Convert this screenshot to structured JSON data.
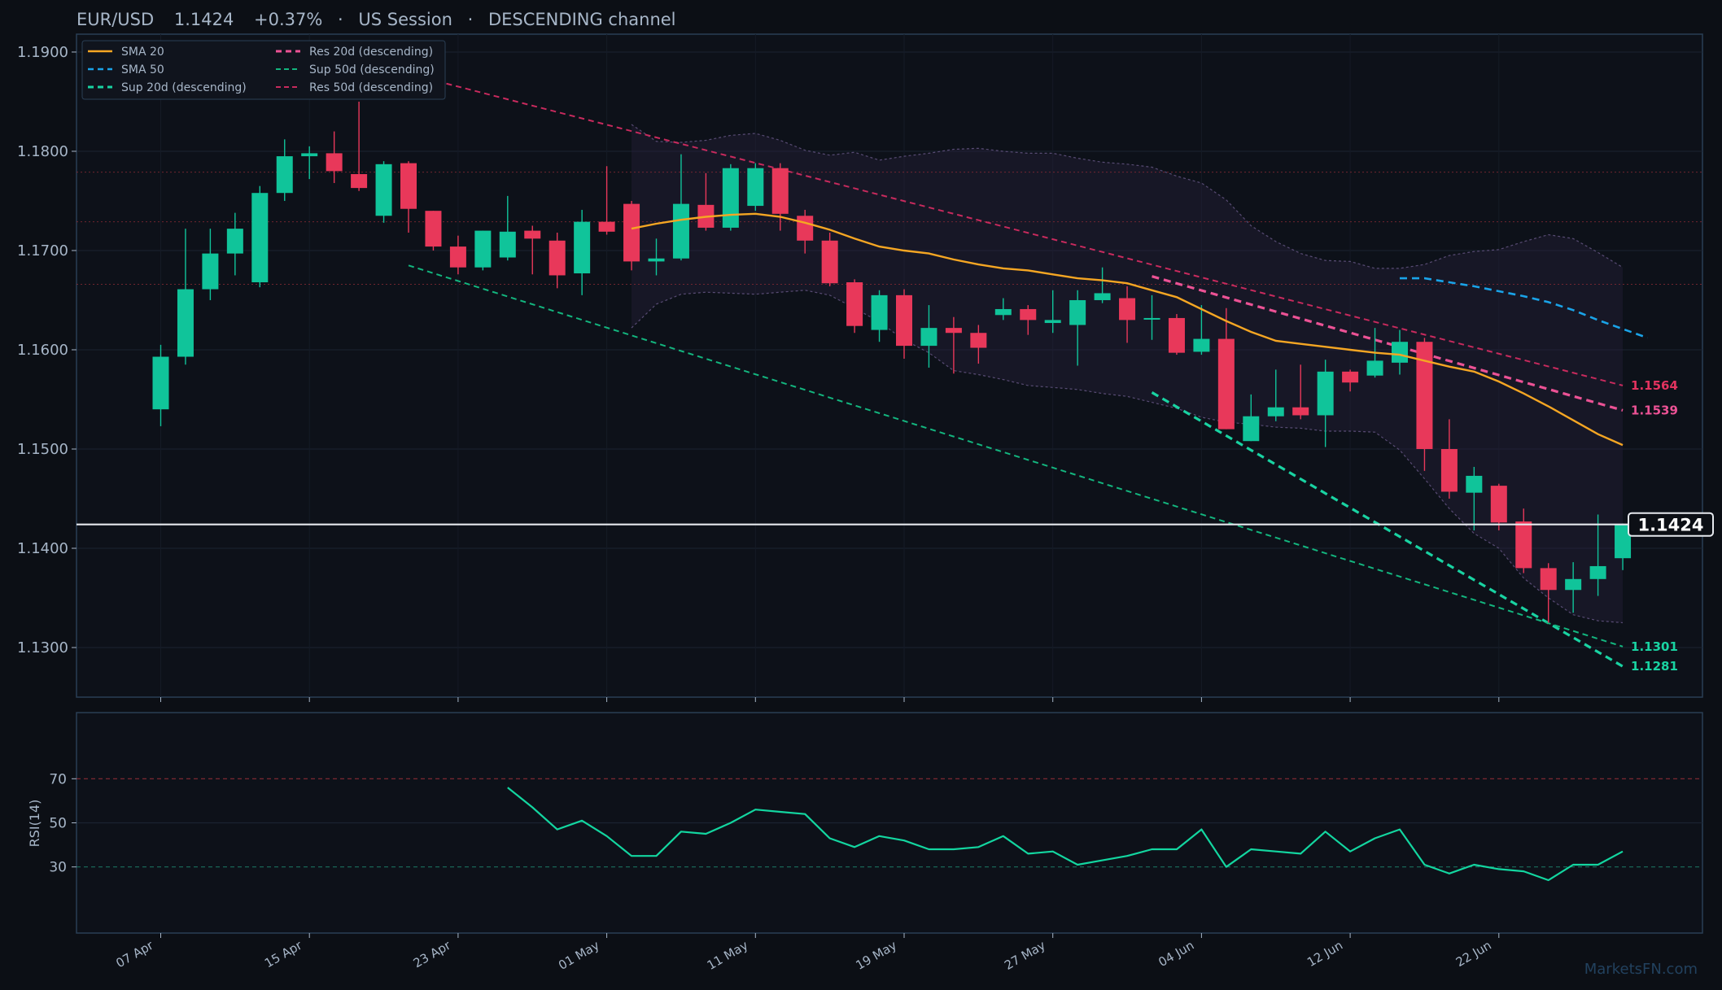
{
  "header": {
    "pair": "EUR/USD",
    "price": "1.1424",
    "change": "+0.37%",
    "session": "US Session",
    "channel": "DESCENDING channel",
    "sep": "·"
  },
  "watermark": "MarketsFN.com",
  "colors": {
    "bg": "#0c0f15",
    "panel": "#0d1119",
    "border": "#2a3f55",
    "up": "#10c49a",
    "down": "#e8385a",
    "sma20": "#f5a623",
    "sma50": "#1aa3e8",
    "sup20": "#19d3a2",
    "sup50": "#13b57e",
    "res20": "#ec5295",
    "res50": "#c72a5d",
    "band": "#6a5a8a",
    "rsi": "#13d6a0",
    "text": "#a7b6c8"
  },
  "chart_data": [
    {
      "type": "candlestick",
      "ylim": [
        1.125,
        1.1918
      ],
      "y_ticks": [
        "1.1300",
        "1.1400",
        "1.1500",
        "1.1600",
        "1.1700",
        "1.1800",
        "1.1900"
      ],
      "y_tick_values": [
        1.13,
        1.14,
        1.15,
        1.16,
        1.17,
        1.18,
        1.19
      ],
      "x_tick_labels": [
        "07 Apr",
        "15 Apr",
        "23 Apr",
        "01 May",
        "11 May",
        "19 May",
        "27 May",
        "04 Jun",
        "12 Jun",
        "22 Jun"
      ],
      "x_tick_index": [
        0,
        6,
        12,
        18,
        24,
        30,
        36,
        42,
        48,
        54
      ],
      "dates": [
        "07 Apr",
        "08 Apr",
        "09 Apr",
        "10 Apr",
        "11 Apr",
        "14 Apr",
        "15 Apr",
        "16 Apr",
        "17 Apr",
        "18 Apr",
        "21 Apr",
        "22 Apr",
        "23 Apr",
        "24 Apr",
        "25 Apr",
        "28 Apr",
        "29 Apr",
        "30 Apr",
        "01 May",
        "02 May",
        "05 May",
        "06 May",
        "07 May",
        "08 May",
        "11 May",
        "12 May",
        "13 May",
        "14 May",
        "15 May",
        "18 May",
        "19 May",
        "20 May",
        "21 May",
        "22 May",
        "25 May",
        "26 May",
        "27 May",
        "28 May",
        "29 May",
        "01 Jun",
        "02 Jun",
        "03 Jun",
        "04 Jun",
        "05 Jun",
        "08 Jun",
        "09 Jun",
        "10 Jun",
        "11 Jun",
        "12 Jun",
        "15 Jun",
        "16 Jun",
        "17 Jun",
        "18 Jun",
        "19 Jun",
        "22 Jun",
        "23 Jun",
        "24 Jun",
        "25 Jun",
        "26 Jun",
        "29 Jun",
        "30 Jun",
        "01 Jul"
      ],
      "ohlc": [
        [
          1.154,
          1.1605,
          1.1523,
          1.1593
        ],
        [
          1.1593,
          1.1722,
          1.1585,
          1.1661
        ],
        [
          1.1661,
          1.1722,
          1.165,
          1.1697
        ],
        [
          1.1697,
          1.1738,
          1.1675,
          1.1722
        ],
        [
          1.1668,
          1.1765,
          1.1663,
          1.1758
        ],
        [
          1.1758,
          1.1812,
          1.175,
          1.1795
        ],
        [
          1.1795,
          1.1805,
          1.1772,
          1.1798
        ],
        [
          1.1798,
          1.182,
          1.1768,
          1.178
        ],
        [
          1.1777,
          1.185,
          1.176,
          1.1763
        ],
        [
          1.1735,
          1.179,
          1.1728,
          1.1787
        ],
        [
          1.1788,
          1.179,
          1.1718,
          1.1742
        ],
        [
          1.174,
          1.174,
          1.17,
          1.1704
        ],
        [
          1.1704,
          1.1715,
          1.1676,
          1.1683
        ],
        [
          1.1683,
          1.172,
          1.168,
          1.172
        ],
        [
          1.1693,
          1.1755,
          1.169,
          1.1719
        ],
        [
          1.172,
          1.1725,
          1.1676,
          1.1712
        ],
        [
          1.171,
          1.1718,
          1.1662,
          1.1675
        ],
        [
          1.1677,
          1.1741,
          1.1655,
          1.1729
        ],
        [
          1.1729,
          1.1785,
          1.1716,
          1.1719
        ],
        [
          1.1747,
          1.175,
          1.168,
          1.1689
        ],
        [
          1.1689,
          1.1712,
          1.1675,
          1.1692
        ],
        [
          1.1692,
          1.1797,
          1.169,
          1.1747
        ],
        [
          1.1746,
          1.1778,
          1.172,
          1.1723
        ],
        [
          1.1723,
          1.1787,
          1.172,
          1.1783
        ],
        [
          1.1745,
          1.1788,
          1.174,
          1.1783
        ],
        [
          1.1783,
          1.1788,
          1.172,
          1.1737
        ],
        [
          1.1735,
          1.1741,
          1.1697,
          1.171
        ],
        [
          1.171,
          1.1718,
          1.1664,
          1.1667
        ],
        [
          1.1668,
          1.1671,
          1.1617,
          1.1624
        ],
        [
          1.162,
          1.166,
          1.1608,
          1.1655
        ],
        [
          1.1655,
          1.1661,
          1.1591,
          1.1604
        ],
        [
          1.1604,
          1.1645,
          1.1582,
          1.1622
        ],
        [
          1.1622,
          1.1633,
          1.1576,
          1.1617
        ],
        [
          1.1617,
          1.1625,
          1.1586,
          1.1602
        ],
        [
          1.1635,
          1.1652,
          1.163,
          1.1641
        ],
        [
          1.1641,
          1.1645,
          1.1615,
          1.163
        ],
        [
          1.1627,
          1.166,
          1.1617,
          1.163
        ],
        [
          1.1625,
          1.166,
          1.1584,
          1.165
        ],
        [
          1.165,
          1.1683,
          1.1647,
          1.1657
        ],
        [
          1.1652,
          1.1664,
          1.1607,
          1.163
        ],
        [
          1.1632,
          1.1655,
          1.161,
          1.1632
        ],
        [
          1.1632,
          1.1636,
          1.1595,
          1.1597
        ],
        [
          1.1598,
          1.1645,
          1.1595,
          1.1611
        ],
        [
          1.1611,
          1.1642,
          1.152,
          1.152
        ],
        [
          1.1508,
          1.1555,
          1.1508,
          1.1533
        ],
        [
          1.1533,
          1.158,
          1.1528,
          1.1542
        ],
        [
          1.1542,
          1.1585,
          1.153,
          1.1534
        ],
        [
          1.1534,
          1.159,
          1.1502,
          1.1578
        ],
        [
          1.1578,
          1.158,
          1.1558,
          1.1567
        ],
        [
          1.1574,
          1.1622,
          1.1572,
          1.1589
        ],
        [
          1.1587,
          1.162,
          1.1575,
          1.1608
        ],
        [
          1.1608,
          1.1612,
          1.1478,
          1.15
        ],
        [
          1.15,
          1.153,
          1.145,
          1.1457
        ],
        [
          1.1456,
          1.1482,
          1.1418,
          1.1473
        ],
        [
          1.1463,
          1.1465,
          1.1418,
          1.1426
        ],
        [
          1.1427,
          1.144,
          1.1375,
          1.138
        ],
        [
          1.138,
          1.1385,
          1.1325,
          1.1358
        ],
        [
          1.1358,
          1.1386,
          1.1335,
          1.1369
        ],
        [
          1.1369,
          1.1434,
          1.1352,
          1.1382
        ],
        [
          1.139,
          1.1425,
          1.1378,
          1.1424
        ]
      ],
      "sma20": {
        "start": 19,
        "values": [
          1.1722,
          1.1727,
          1.1731,
          1.1734,
          1.1736,
          1.1737,
          1.1734,
          1.1728,
          1.1721,
          1.1712,
          1.1704,
          1.17,
          1.1697,
          1.1691,
          1.1686,
          1.1682,
          1.168,
          1.1676,
          1.1672,
          1.167,
          1.1667,
          1.166,
          1.1653,
          1.1641,
          1.1629,
          1.1618,
          1.1609,
          1.1606,
          1.1603,
          1.16,
          1.1597,
          1.1595,
          1.1589,
          1.1583,
          1.1578,
          1.1568,
          1.1556,
          1.1543,
          1.1529,
          1.1515,
          1.1504
        ]
      },
      "sma50": {
        "start": 50,
        "values": [
          1.1672,
          1.1672,
          1.1668,
          1.1664,
          1.1659,
          1.1654,
          1.1648,
          1.164,
          1.163,
          1.1621,
          1.1612
        ]
      },
      "bands": {
        "start": 19,
        "upper": [
          1.1827,
          1.181,
          1.1809,
          1.1811,
          1.1816,
          1.1818,
          1.1811,
          1.1801,
          1.1796,
          1.1799,
          1.1791,
          1.1795,
          1.1798,
          1.1802,
          1.1803,
          1.18,
          1.1798,
          1.1798,
          1.1793,
          1.1789,
          1.1787,
          1.1784,
          1.1775,
          1.1768,
          1.1751,
          1.1725,
          1.1709,
          1.1697,
          1.169,
          1.1689,
          1.1682,
          1.1682,
          1.1686,
          1.1695,
          1.1699,
          1.1701,
          1.1709,
          1.1716,
          1.1712,
          1.1698,
          1.1683
        ],
        "lower": [
          1.1622,
          1.1646,
          1.1656,
          1.1658,
          1.1657,
          1.1656,
          1.1658,
          1.166,
          1.1655,
          1.1642,
          1.1628,
          1.161,
          1.1597,
          1.1579,
          1.1575,
          1.157,
          1.1564,
          1.1562,
          1.156,
          1.1556,
          1.1553,
          1.1547,
          1.1541,
          1.1532,
          1.1527,
          1.1525,
          1.1522,
          1.1521,
          1.1518,
          1.1518,
          1.1517,
          1.1499,
          1.147,
          1.144,
          1.1415,
          1.14,
          1.137,
          1.135,
          1.1333,
          1.1327,
          1.1325
        ]
      },
      "trendlines": [
        {
          "name": "Res 20d (descending)",
          "from": [
            40,
            1.1674
          ],
          "to": [
            59,
            1.1539
          ],
          "label": "1.1539"
        },
        {
          "name": "Res 50d (descending)",
          "from": [
            10,
            1.1878
          ],
          "to": [
            59,
            1.1564
          ],
          "label": "1.1564"
        },
        {
          "name": "Sup 20d (descending)",
          "from": [
            40,
            1.1557
          ],
          "to": [
            59,
            1.1281
          ],
          "label": "1.1281"
        },
        {
          "name": "Sup 50d (descending)",
          "from": [
            10,
            1.1685
          ],
          "to": [
            59,
            1.1301
          ],
          "label": "1.1301"
        }
      ],
      "horizontal_levels": [
        1.1779,
        1.1729,
        1.1666
      ],
      "last_price": 1.1424,
      "last_price_label": "1.1424",
      "legend": {
        "placement": "top-left",
        "col1": [
          "SMA 20",
          "SMA 50",
          "Sup 20d (descending)"
        ],
        "col2": [
          "Res 20d (descending)",
          "Sup 50d (descending)",
          "Res 50d (descending)"
        ]
      }
    },
    {
      "type": "line",
      "ylabel": "RSI(14)",
      "ylim": [
        0,
        100
      ],
      "y_ticks": [
        "30",
        "50",
        "70"
      ],
      "y_tick_values": [
        30,
        50,
        70
      ],
      "levels": {
        "overbought": 70,
        "oversold": 30
      },
      "rsi": {
        "start": 14,
        "values": [
          66,
          57,
          47,
          51,
          44,
          35,
          35,
          46,
          45,
          50,
          56,
          55,
          54,
          43,
          39,
          44,
          42,
          38,
          38,
          39,
          44,
          36,
          37,
          31,
          33,
          35,
          38,
          38,
          47,
          30,
          38,
          37,
          36,
          46,
          37,
          43,
          47,
          31,
          27,
          31,
          29,
          28,
          24,
          31,
          31,
          37
        ]
      }
    }
  ]
}
